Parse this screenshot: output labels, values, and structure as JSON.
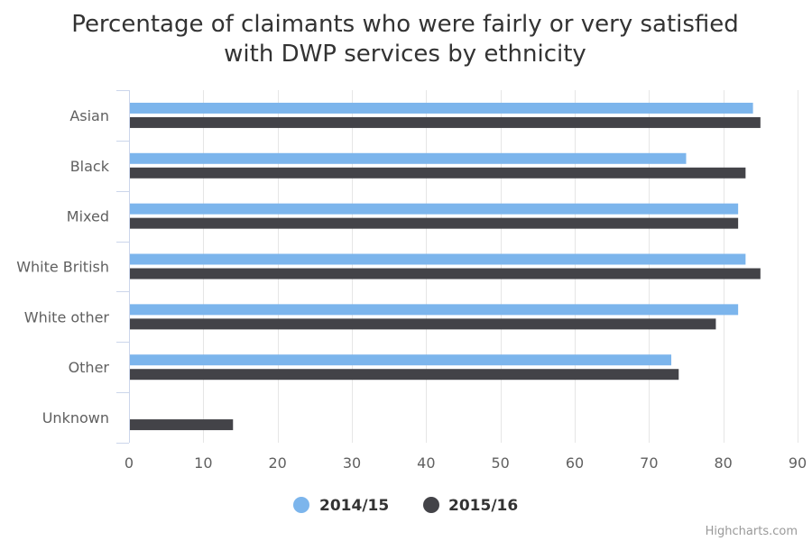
{
  "chart_data": {
    "type": "bar",
    "orientation": "horizontal",
    "title_lines": [
      "Percentage of claimants who were fairly or very satisfied",
      "with DWP services by ethnicity"
    ],
    "categories": [
      "Asian",
      "Black",
      "Mixed",
      "White British",
      "White other",
      "Other",
      "Unknown"
    ],
    "series": [
      {
        "name": "2014/15",
        "color": "#7cb5ec",
        "values": [
          84,
          75,
          82,
          83,
          82,
          73,
          null
        ]
      },
      {
        "name": "2015/16",
        "color": "#434348",
        "values": [
          85,
          83,
          82,
          85,
          79,
          74,
          14
        ]
      }
    ],
    "xlim": [
      0,
      90
    ],
    "ticks": [
      0,
      10,
      20,
      30,
      40,
      50,
      60,
      70,
      80,
      90
    ],
    "grid": true,
    "legend_position": "bottom-center",
    "credits": "Highcharts.com"
  }
}
